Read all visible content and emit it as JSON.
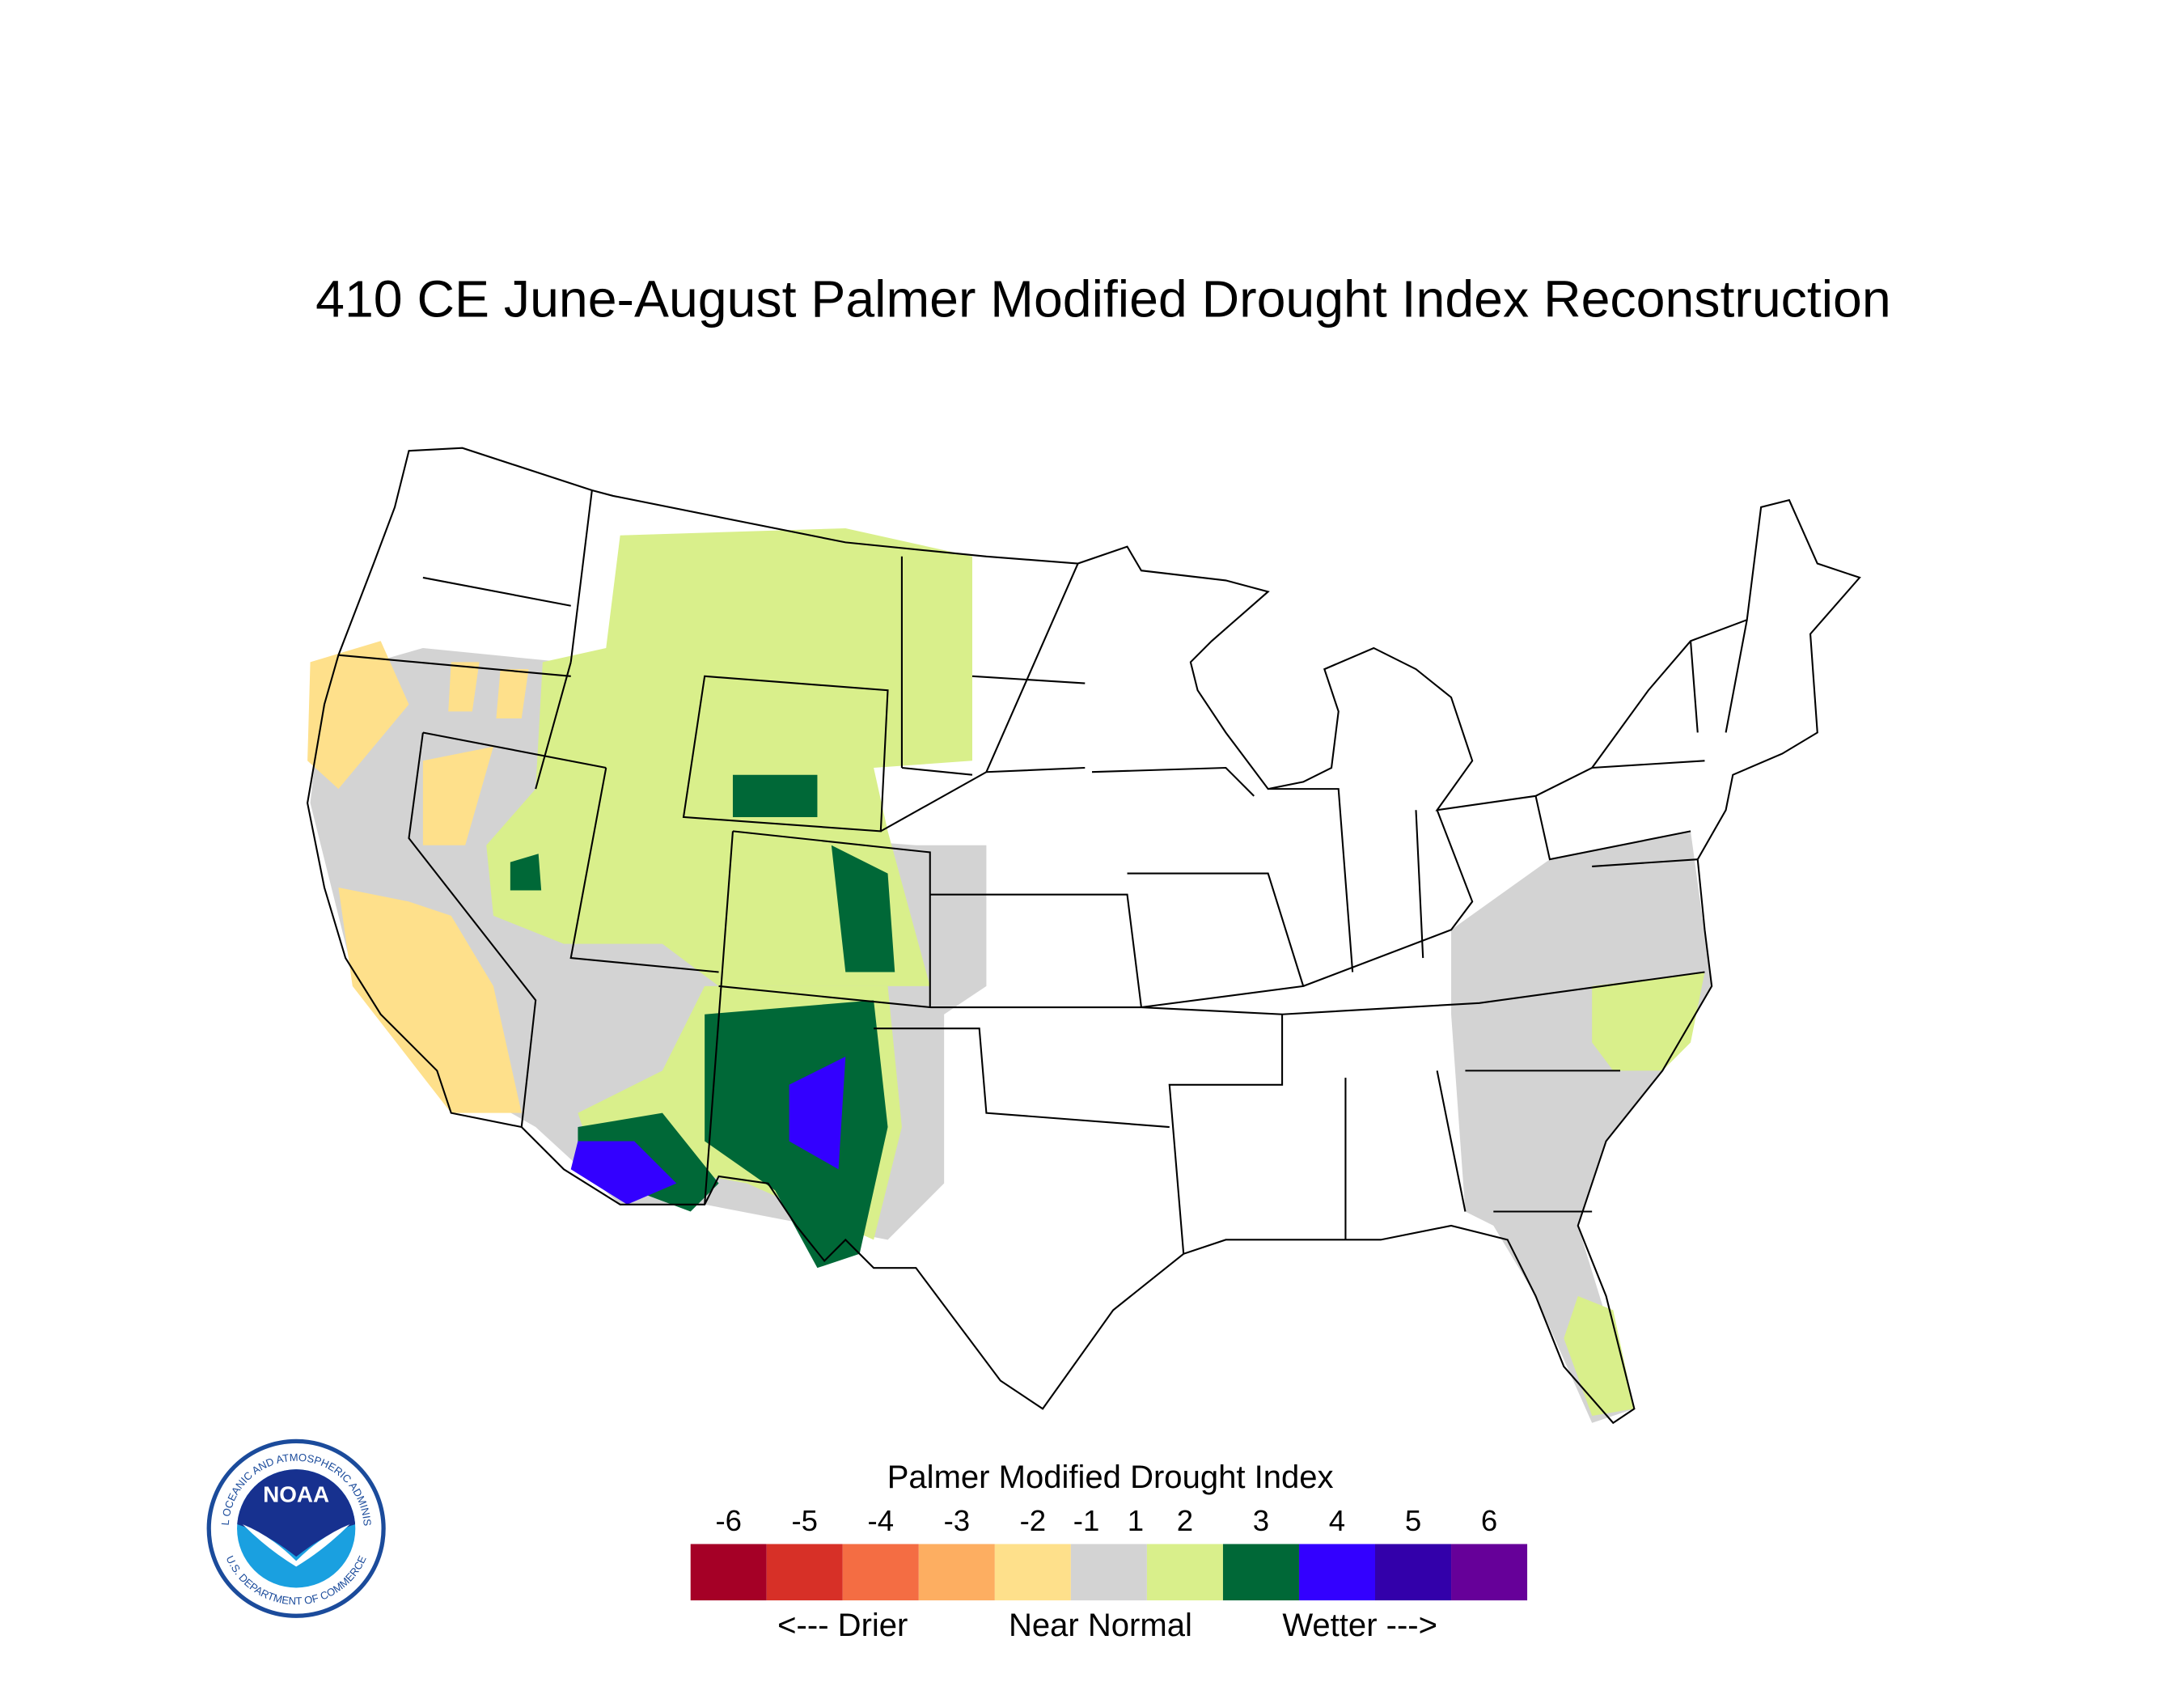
{
  "title": "410 CE  June-August  Palmer Modified Drought Index Reconstruction",
  "legend": {
    "title": "Palmer Modified Drought Index",
    "ticks": [
      -6,
      -5,
      -4,
      -3,
      -2,
      -1,
      1,
      2,
      3,
      4,
      5,
      6
    ],
    "colors": [
      "#a50026",
      "#d73027",
      "#f46d43",
      "#fdae61",
      "#fee08b",
      "#d3d3d3",
      "#d9ef8b",
      "#006837",
      "#3300ff",
      "#3300aa",
      "#660099"
    ],
    "notes": [
      "<--- Drier",
      "Near Normal",
      "Wetter --->"
    ]
  },
  "logo": {
    "name": "NOAA",
    "ring_top": "NATIONAL OCEANIC AND ATMOSPHERIC ADMINISTRATION",
    "ring_bottom": "U.S. DEPARTMENT OF COMMERCE"
  }
}
